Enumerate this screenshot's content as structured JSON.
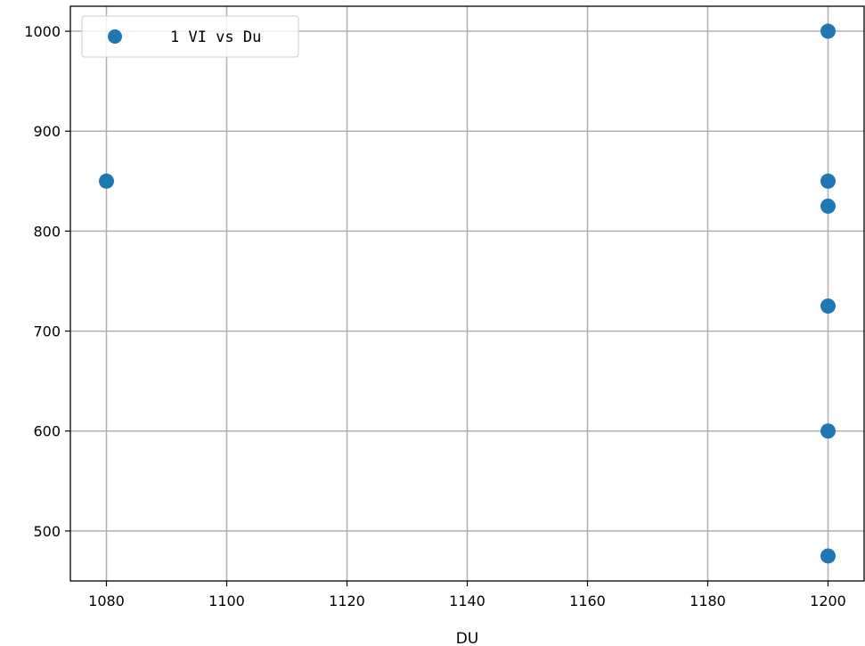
{
  "chart_data": {
    "type": "scatter",
    "title": "",
    "xlabel": "DU",
    "ylabel": "",
    "xlim": [
      1074,
      1206
    ],
    "ylim": [
      450,
      1025
    ],
    "xticks": [
      1080,
      1100,
      1120,
      1140,
      1160,
      1180,
      1200
    ],
    "yticks": [
      500,
      600,
      700,
      800,
      900,
      1000
    ],
    "grid": true,
    "legend_position": "top-left",
    "series": [
      {
        "name": "1 VI vs Du",
        "color": "#1f77b4",
        "marker": "circle",
        "points": [
          {
            "x": 1080,
            "y": 850
          },
          {
            "x": 1200,
            "y": 1000
          },
          {
            "x": 1200,
            "y": 850
          },
          {
            "x": 1200,
            "y": 825
          },
          {
            "x": 1200,
            "y": 725
          },
          {
            "x": 1200,
            "y": 600
          },
          {
            "x": 1200,
            "y": 475
          }
        ]
      }
    ]
  }
}
